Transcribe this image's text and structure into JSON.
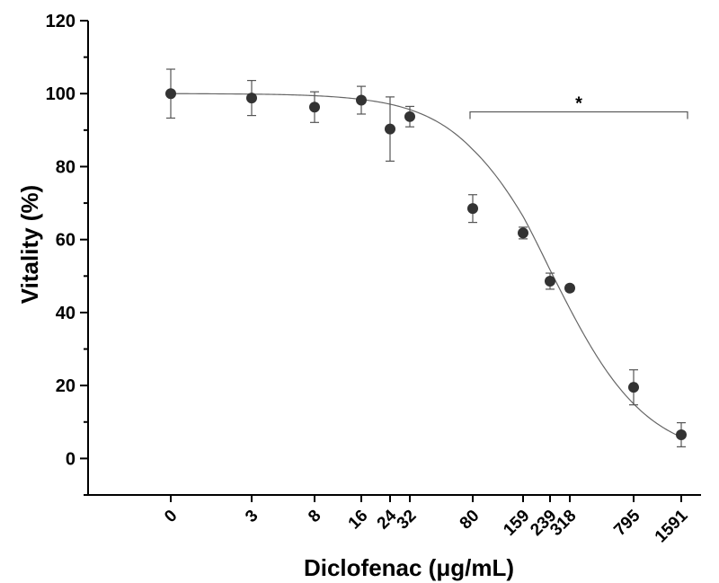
{
  "chart_data": {
    "type": "scatter",
    "title": "",
    "xlabel": "Diclofenac (μg/mL)",
    "ylabel": "Vitality (%)",
    "ylim": [
      -10,
      120
    ],
    "yticks": [
      "0",
      "20",
      "40",
      "60",
      "80",
      "100",
      "120"
    ],
    "x_categories": [
      "0",
      "3",
      "8",
      "16",
      "24",
      "32",
      "80",
      "159",
      "239",
      "318",
      "795",
      "1591"
    ],
    "series": [
      {
        "values": [
          100,
          98.8,
          96.3,
          98.2,
          90.3,
          93.7,
          68.5,
          61.8,
          48.6,
          46.7,
          19.5,
          6.5
        ],
        "errors": [
          6.7,
          4.8,
          4.2,
          3.8,
          8.8,
          2.8,
          3.8,
          1.6,
          2.2,
          0.8,
          4.8,
          3.3
        ]
      }
    ],
    "fit_curve": {
      "type": "sigmoid",
      "top": 100,
      "bottom": 0,
      "ic50": 250,
      "hill": 1.5
    },
    "annotation": {
      "text": "*",
      "from_category": "80",
      "to_category": "1591",
      "y": 95
    },
    "colors": {
      "marker": "#333333",
      "curve": "#666666",
      "axis": "#000000"
    }
  }
}
